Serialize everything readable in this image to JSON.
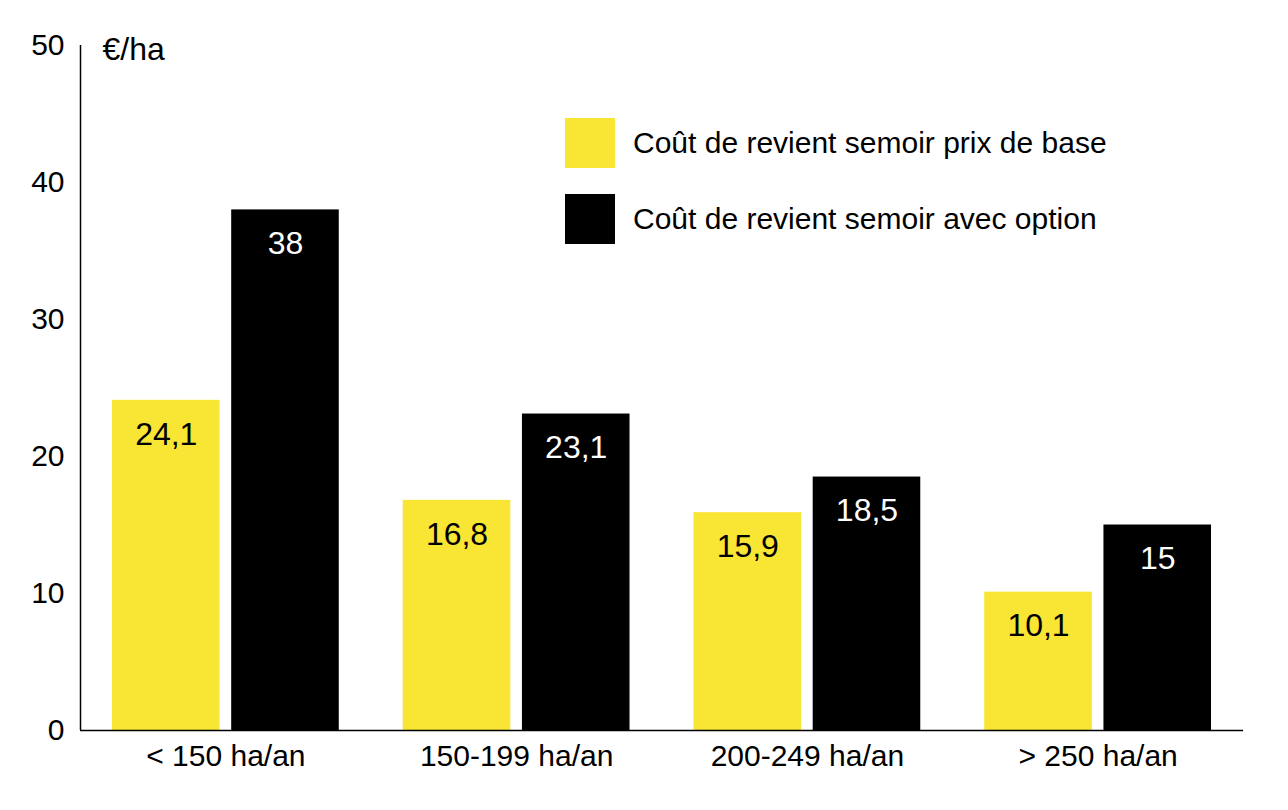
{
  "chart_data": {
    "type": "bar",
    "categories": [
      "< 150 ha/an",
      "150-199 ha/an",
      "200-249 ha/an",
      "> 250 ha/an"
    ],
    "series": [
      {
        "name": "Coût de revient semoir prix de base",
        "color": "#f9e533",
        "values": [
          24.1,
          16.8,
          15.9,
          10.1
        ],
        "value_labels": [
          "24,1",
          "16,8",
          "15,9",
          "10,1"
        ]
      },
      {
        "name": "Coût de revient semoir avec option",
        "color": "#000000",
        "values": [
          38,
          23.1,
          18.5,
          15
        ],
        "value_labels": [
          "38",
          "23,1",
          "18,5",
          "15"
        ]
      }
    ],
    "ylabel": "€/ha",
    "ylim": [
      0,
      50
    ],
    "yticks": [
      0,
      10,
      20,
      30,
      40,
      50
    ],
    "data_labels": true,
    "legend": "top-right",
    "grid": false
  }
}
